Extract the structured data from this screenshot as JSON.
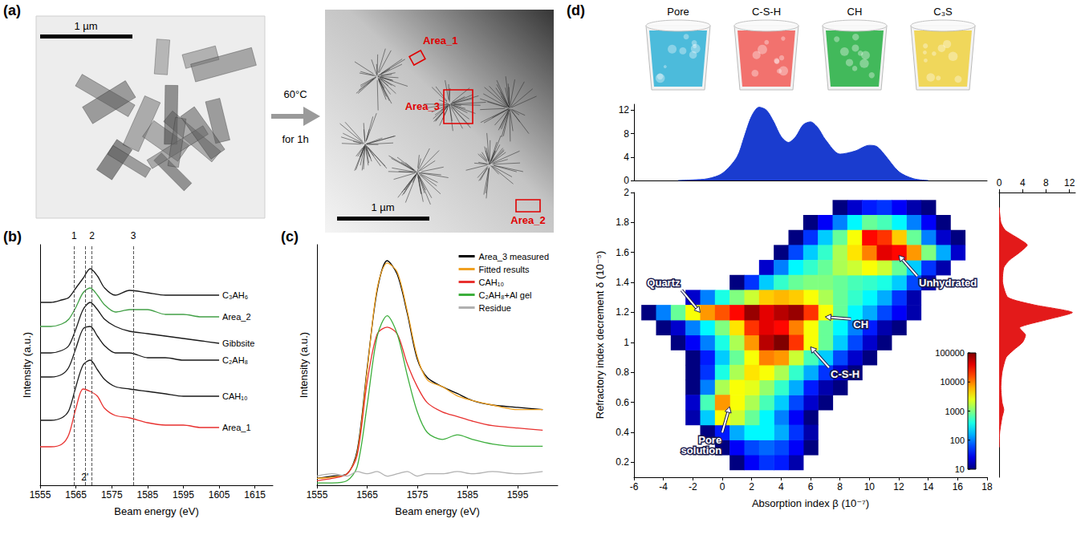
{
  "panel_a": {
    "label": "(a)",
    "scale_bar": "1 µm",
    "treatment": "60°C for 1h",
    "areas": [
      "Area_1",
      "Area_3",
      "Area_2"
    ]
  },
  "panel_d_renders": {
    "label": "(d)",
    "phases": [
      {
        "name": "Pore",
        "color": "#3ab5d8"
      },
      {
        "name": "C-S-H",
        "color": "#f2645f"
      },
      {
        "name": "CH",
        "color": "#2fb24a"
      },
      {
        "name": "C₃S",
        "color": "#f0d44a"
      }
    ]
  },
  "chart_data": [
    {
      "panel_label": "(b)",
      "type": "line",
      "x_label": "Beam energy (eV)",
      "y_label": "Intensity (a.u.)",
      "x": [
        1555,
        1558,
        1561,
        1563,
        1565,
        1567,
        1569,
        1571,
        1573,
        1576,
        1580,
        1585,
        1590,
        1595,
        1600,
        1605
      ],
      "series": [
        {
          "name": "C₃AH₆",
          "color": "#1a1a1a",
          "values": [
            7.6,
            7.6,
            7.7,
            7.8,
            8.2,
            8.6,
            9.0,
            8.7,
            8.2,
            7.9,
            8.1,
            8.0,
            7.9,
            7.9,
            7.9,
            7.9
          ]
        },
        {
          "name": "Area_2",
          "color": "#43a047",
          "values": [
            6.6,
            6.6,
            6.7,
            6.9,
            7.4,
            8.0,
            8.2,
            7.9,
            7.5,
            7.2,
            7.3,
            7.3,
            7.1,
            7.1,
            7.0,
            7.0
          ]
        },
        {
          "name": "Gibbsite",
          "color": "#1a1a1a",
          "values": [
            5.5,
            5.5,
            5.6,
            5.8,
            6.5,
            7.3,
            7.6,
            7.3,
            6.9,
            6.6,
            6.4,
            6.3,
            6.2,
            6.1,
            6.0,
            5.9
          ]
        },
        {
          "name": "C₂AH₈",
          "color": "#1a1a1a",
          "values": [
            4.5,
            4.5,
            4.6,
            4.9,
            5.7,
            6.5,
            6.6,
            6.2,
            5.8,
            5.5,
            5.5,
            5.3,
            5.3,
            5.2,
            5.2,
            5.2
          ]
        },
        {
          "name": "CAH₁₀",
          "color": "#1a1a1a",
          "values": [
            2.7,
            2.7,
            2.8,
            3.1,
            4.1,
            5.0,
            5.2,
            4.8,
            4.4,
            4.1,
            4.0,
            3.9,
            3.8,
            3.7,
            3.7,
            3.7
          ]
        },
        {
          "name": "Area_1",
          "color": "#e8312f",
          "values": [
            1.6,
            1.6,
            1.7,
            2.1,
            3.2,
            4.0,
            3.9,
            3.7,
            3.2,
            2.9,
            2.8,
            2.6,
            2.5,
            2.5,
            2.4,
            2.4
          ]
        }
      ],
      "xlim": [
        1555,
        1620
      ],
      "xticks": [
        1555,
        1565,
        1575,
        1585,
        1595,
        1605,
        1615
      ],
      "ylim": [
        0,
        10
      ],
      "tick_labels": "x",
      "vlines": [
        {
          "x": 1564.5,
          "label": "1"
        },
        {
          "x": 1569.5,
          "label": "2"
        },
        {
          "x": 1581,
          "label": "3"
        }
      ],
      "vlines_lower": [
        {
          "x": 1567.5,
          "label": "2'"
        }
      ]
    },
    {
      "panel_label": "(c)",
      "type": "line",
      "x_label": "Beam energy (eV)",
      "y_label": "Intensity (a.u.)",
      "x": [
        1555,
        1558,
        1561,
        1563,
        1565,
        1567,
        1569,
        1571,
        1573,
        1575,
        1577,
        1580,
        1583,
        1586,
        1590,
        1595,
        1600
      ],
      "series": [
        {
          "name": "Area_3 measured",
          "color": "#000000",
          "values": [
            0.3,
            0.4,
            0.5,
            1.5,
            5.1,
            8.5,
            9.8,
            9.2,
            7.5,
            5.5,
            4.7,
            4.3,
            4.0,
            3.7,
            3.5,
            3.4,
            3.3
          ]
        },
        {
          "name": "Fitted results",
          "color": "#f0a020",
          "values": [
            0.3,
            0.35,
            0.5,
            1.4,
            5.0,
            8.6,
            9.7,
            9.3,
            7.6,
            5.6,
            4.6,
            4.3,
            3.9,
            3.7,
            3.5,
            3.3,
            3.3
          ]
        },
        {
          "name": "CAH₁₀",
          "color": "#e8312f",
          "values": [
            0.2,
            0.3,
            0.5,
            1.3,
            4.5,
            6.6,
            6.9,
            6.6,
            5.3,
            4.3,
            3.6,
            3.2,
            3.0,
            2.8,
            2.6,
            2.5,
            2.4
          ]
        },
        {
          "name": "C₂AH₈+Al gel",
          "color": "#3cae3c",
          "values": [
            0.1,
            0.1,
            0.2,
            0.8,
            3.5,
            6.5,
            7.4,
            6.6,
            4.8,
            3.2,
            2.3,
            2.0,
            2.2,
            2.0,
            1.8,
            1.7,
            1.7
          ]
        },
        {
          "name": "Residue",
          "color": "#b0b0b0",
          "values": [
            0.4,
            0.5,
            0.4,
            0.6,
            0.5,
            0.6,
            0.4,
            0.5,
            0.6,
            0.4,
            0.5,
            0.5,
            0.6,
            0.5,
            0.6,
            0.5,
            0.6
          ]
        }
      ],
      "xlim": [
        1555,
        1603
      ],
      "xticks": [
        1555,
        1565,
        1575,
        1585,
        1595
      ],
      "ylim": [
        0,
        10.5
      ],
      "tick_labels": "x",
      "legend": "upper right"
    },
    {
      "type": "area",
      "x": [
        -3,
        -2,
        -1,
        0,
        1,
        1.5,
        2,
        2.5,
        3,
        3.5,
        4,
        4.5,
        5,
        5.5,
        6,
        6.5,
        7,
        8,
        9,
        10,
        10.5,
        11,
        12,
        13,
        14
      ],
      "values": [
        0,
        0.1,
        0.3,
        1.2,
        4,
        7.5,
        11,
        12.5,
        12,
        10,
        7.5,
        6.5,
        7.5,
        9.5,
        10,
        9,
        7,
        4.5,
        5,
        6,
        5.8,
        4.5,
        1.5,
        0.3,
        0
      ],
      "color": "#1a3ccf",
      "xlim": [
        -6,
        18
      ],
      "ylim": [
        0,
        13
      ],
      "yticks": [
        0,
        4,
        8,
        12
      ],
      "tick_labels": "y"
    },
    {
      "type": "heatmap",
      "x_label": "Absorption index β (10⁻⁷)",
      "y_label": "Refractory index decrement δ (10⁻⁵)",
      "x": [
        -5,
        -4,
        -3,
        -2,
        -1,
        0,
        1,
        2,
        3,
        4,
        5,
        6,
        7,
        8,
        9,
        10,
        11,
        12,
        13,
        14,
        15,
        16
      ],
      "y": [
        0.2,
        0.3,
        0.4,
        0.5,
        0.6,
        0.7,
        0.8,
        0.9,
        1.0,
        1.1,
        1.2,
        1.3,
        1.4,
        1.5,
        1.6,
        1.7,
        1.8,
        1.9
      ],
      "counts": [
        [
          null,
          null,
          null,
          null,
          null,
          null,
          10,
          30,
          50,
          40,
          15,
          null,
          null,
          null,
          null,
          null,
          null,
          null,
          null,
          null,
          null,
          null
        ],
        [
          null,
          null,
          null,
          null,
          null,
          10,
          30,
          60,
          80,
          60,
          30,
          10,
          null,
          null,
          null,
          null,
          null,
          null,
          null,
          null,
          null,
          null
        ],
        [
          null,
          null,
          null,
          null,
          10,
          40,
          150,
          300,
          300,
          150,
          50,
          15,
          null,
          null,
          null,
          null,
          null,
          null,
          null,
          null,
          null,
          null
        ],
        [
          null,
          null,
          null,
          15,
          200,
          3000,
          2000,
          800,
          300,
          100,
          30,
          10,
          null,
          null,
          null,
          null,
          null,
          null,
          null,
          null,
          null,
          null
        ],
        [
          null,
          null,
          null,
          20,
          600,
          8000,
          3000,
          1500,
          600,
          200,
          60,
          20,
          10,
          null,
          null,
          null,
          null,
          null,
          null,
          null,
          null,
          null
        ],
        [
          null,
          null,
          null,
          10,
          100,
          1500,
          3000,
          2500,
          1200,
          500,
          150,
          40,
          15,
          10,
          null,
          null,
          null,
          null,
          null,
          null,
          null,
          null
        ],
        [
          null,
          null,
          null,
          10,
          50,
          400,
          1500,
          4000,
          3000,
          1500,
          500,
          150,
          50,
          20,
          10,
          null,
          null,
          null,
          null,
          null,
          null,
          null
        ],
        [
          null,
          null,
          null,
          10,
          40,
          200,
          800,
          3000,
          10000,
          8000,
          2000,
          600,
          200,
          60,
          20,
          10,
          null,
          null,
          null,
          null,
          null,
          null
        ],
        [
          null,
          null,
          10,
          30,
          100,
          400,
          1500,
          8000,
          60000,
          100000,
          20000,
          3000,
          800,
          200,
          60,
          20,
          10,
          null,
          null,
          null,
          null,
          null
        ],
        [
          null,
          10,
          20,
          100,
          300,
          1000,
          4000,
          20000,
          40000,
          30000,
          10000,
          3000,
          800,
          300,
          100,
          40,
          15,
          10,
          null,
          null,
          null,
          null
        ],
        [
          10,
          100,
          800,
          3000,
          8000,
          15000,
          30000,
          80000,
          40000,
          60000,
          80000,
          20000,
          3000,
          800,
          300,
          150,
          60,
          30,
          15,
          null,
          null,
          null
        ],
        [
          null,
          null,
          null,
          20,
          100,
          400,
          1000,
          2000,
          5000,
          6000,
          5000,
          3000,
          1500,
          800,
          500,
          300,
          150,
          50,
          15,
          null,
          null,
          null
        ],
        [
          null,
          null,
          null,
          null,
          null,
          null,
          10,
          50,
          200,
          500,
          800,
          1000,
          1000,
          800,
          600,
          500,
          400,
          200,
          60,
          15,
          null,
          null
        ],
        [
          null,
          null,
          null,
          null,
          null,
          null,
          null,
          null,
          20,
          100,
          300,
          500,
          800,
          1500,
          2000,
          3000,
          2000,
          800,
          200,
          50,
          15,
          null
        ],
        [
          null,
          null,
          null,
          null,
          null,
          null,
          null,
          null,
          null,
          10,
          60,
          200,
          500,
          1500,
          4000,
          10000,
          40000,
          30000,
          8000,
          1000,
          150,
          20
        ],
        [
          null,
          null,
          null,
          null,
          null,
          null,
          null,
          null,
          null,
          null,
          10,
          50,
          200,
          800,
          3000,
          30000,
          20000,
          5000,
          800,
          100,
          20,
          10
        ],
        [
          null,
          null,
          null,
          null,
          null,
          null,
          null,
          null,
          null,
          null,
          null,
          10,
          30,
          100,
          300,
          800,
          600,
          300,
          100,
          30,
          10,
          null
        ],
        [
          null,
          null,
          null,
          null,
          null,
          null,
          null,
          null,
          null,
          null,
          null,
          null,
          null,
          10,
          20,
          40,
          50,
          30,
          15,
          10,
          null,
          null
        ]
      ],
      "xlim": [
        -6,
        18
      ],
      "xticks": [
        -6,
        -4,
        -2,
        0,
        2,
        4,
        6,
        8,
        10,
        12,
        14,
        16,
        18
      ],
      "ylim": [
        0.1,
        2
      ],
      "yticks": [
        0.2,
        0.4,
        0.6,
        0.8,
        1,
        1.2,
        1.4,
        1.6,
        1.8,
        2
      ],
      "colorbar": {
        "range": [
          10,
          100000
        ],
        "ticks": [
          10,
          100,
          1000,
          10000,
          100000
        ],
        "log": true
      },
      "annotations": [
        {
          "text": "Quartz",
          "x": -1.5,
          "y": 1.2
        },
        {
          "text": "Unhydrated",
          "x": 12,
          "y": 1.58
        },
        {
          "text": "CH",
          "x": 7,
          "y": 1.17
        },
        {
          "text": "C-S-H",
          "x": 6,
          "y": 0.97
        },
        {
          "text": "Pore solution",
          "x": 0.5,
          "y": 0.57
        }
      ]
    },
    {
      "type": "area",
      "orientation": "horizontal",
      "y": [
        0.3,
        0.4,
        0.5,
        0.55,
        0.6,
        0.7,
        0.8,
        0.9,
        0.95,
        1,
        1.05,
        1.1,
        1.15,
        1.2,
        1.25,
        1.3,
        1.4,
        1.5,
        1.55,
        1.6,
        1.65,
        1.7,
        1.75,
        1.8,
        1.9
      ],
      "values": [
        0,
        0.1,
        0.5,
        0.8,
        0.5,
        0.3,
        0.5,
        1.2,
        2.5,
        4,
        4.5,
        3.5,
        8,
        12.5,
        6,
        1.5,
        0.6,
        0.8,
        1.8,
        3.5,
        4.8,
        3,
        1,
        0.3,
        0
      ],
      "color": "#e31a1a",
      "xlim": [
        0,
        13
      ],
      "xticks": [
        0,
        4,
        8,
        12
      ],
      "ylim": [
        0.1,
        2
      ],
      "tick_labels": "x"
    }
  ]
}
